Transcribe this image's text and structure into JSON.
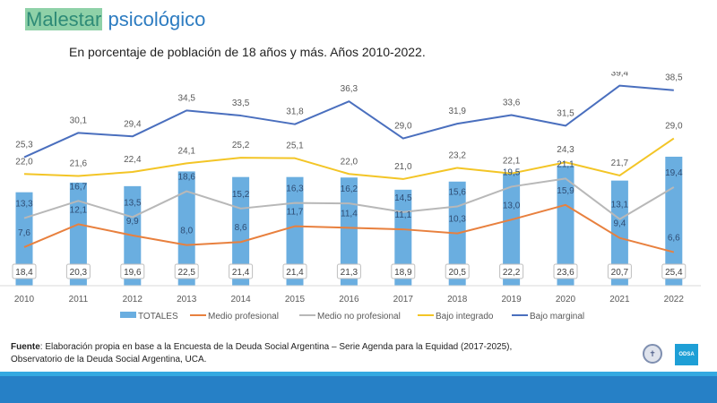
{
  "header": {
    "title_highlight": "Malestar",
    "title_rest": "psicológico",
    "subtitle": "En porcentaje de población de 18 años y más. Años 2010-2022."
  },
  "footer": {
    "source_label": "Fuente",
    "source_text": ": Elaboración propia en base a la Encuesta de la Deuda Social Argentina – Serie Agenda para la Equidad (2017-2025),",
    "source_text_2": "Observatorio de la Deuda Social Argentina, UCA.",
    "logo_uca_icon": "seal-icon",
    "logo_odsa_label": "ODSA"
  },
  "colors": {
    "totales": "#6aaee0",
    "medio_profesional": "#e8803e",
    "medio_no_profesional": "#b8b8b8",
    "bajo_integrado": "#f3c526",
    "bajo_marginal": "#4a6fbe",
    "band_light": "#34a9e1",
    "band_dark": "#2680c6"
  },
  "chart_data": {
    "type": "bar",
    "title": "Malestar psicológico",
    "subtitle": "En porcentaje de población de 18 años y más. Años 2010-2022.",
    "xlabel": "",
    "ylabel": "",
    "ylim": [
      0,
      45
    ],
    "grid": false,
    "legend_position": "bottom",
    "categories": [
      "2010",
      "2011",
      "2012",
      "2013",
      "2014",
      "2015",
      "2016",
      "2017",
      "2018",
      "2019",
      "2020",
      "2021",
      "2022"
    ],
    "series": [
      {
        "name": "TOTALES",
        "kind": "bar",
        "values": [
          18.4,
          20.3,
          19.6,
          22.5,
          21.4,
          21.4,
          21.3,
          18.9,
          20.5,
          22.2,
          23.6,
          20.7,
          25.4
        ],
        "labels": [
          "18,4",
          "20,3",
          "19,6",
          "22,5",
          "21,4",
          "21,4",
          "21,3",
          "18,9",
          "20,5",
          "22,2",
          "23,6",
          "20,7",
          "25,4"
        ]
      },
      {
        "name": "Medio profesional",
        "kind": "line",
        "values": [
          7.6,
          12.1,
          9.9,
          8.0,
          8.6,
          11.7,
          11.4,
          11.1,
          10.3,
          13.0,
          15.9,
          9.4,
          6.6
        ],
        "labels": [
          "7,6",
          "12,1",
          "9,9",
          "8,0",
          "8,6",
          "11,7",
          "11,4",
          "11,1",
          "10,3",
          "13,0",
          "15,9",
          "9,4",
          "6,6"
        ]
      },
      {
        "name": "Medio no profesional",
        "kind": "line",
        "values": [
          13.3,
          16.7,
          13.5,
          18.6,
          15.2,
          16.3,
          16.2,
          14.5,
          15.6,
          19.5,
          21.1,
          13.1,
          19.4
        ],
        "labels": [
          "13,3",
          "16,7",
          "13,5",
          "18,6",
          "15,2",
          "16,3",
          "16,2",
          "14,5",
          "15,6",
          "19,5",
          "21,1",
          "13,1",
          "19,4"
        ]
      },
      {
        "name": "Bajo integrado",
        "kind": "line",
        "values": [
          22.0,
          21.6,
          22.4,
          24.1,
          25.2,
          25.1,
          22.0,
          21.0,
          23.2,
          22.1,
          24.3,
          21.7,
          29.0
        ],
        "labels": [
          "22,0",
          "21,6",
          "22,4",
          "24,1",
          "25,2",
          "25,1",
          "22,0",
          "21,0",
          "23,2",
          "22,1",
          "24,3",
          "21,7",
          "29,0"
        ]
      },
      {
        "name": "Bajo marginal",
        "kind": "line",
        "values": [
          25.3,
          30.1,
          29.4,
          34.5,
          33.5,
          31.8,
          36.3,
          29.0,
          31.9,
          33.6,
          31.5,
          39.4,
          38.5
        ],
        "labels": [
          "25,3",
          "30,1",
          "29,4",
          "34,5",
          "33,5",
          "31,8",
          "36,3",
          "29,0",
          "31,9",
          "33,6",
          "31,5",
          "39,4",
          "38,5"
        ]
      }
    ]
  }
}
